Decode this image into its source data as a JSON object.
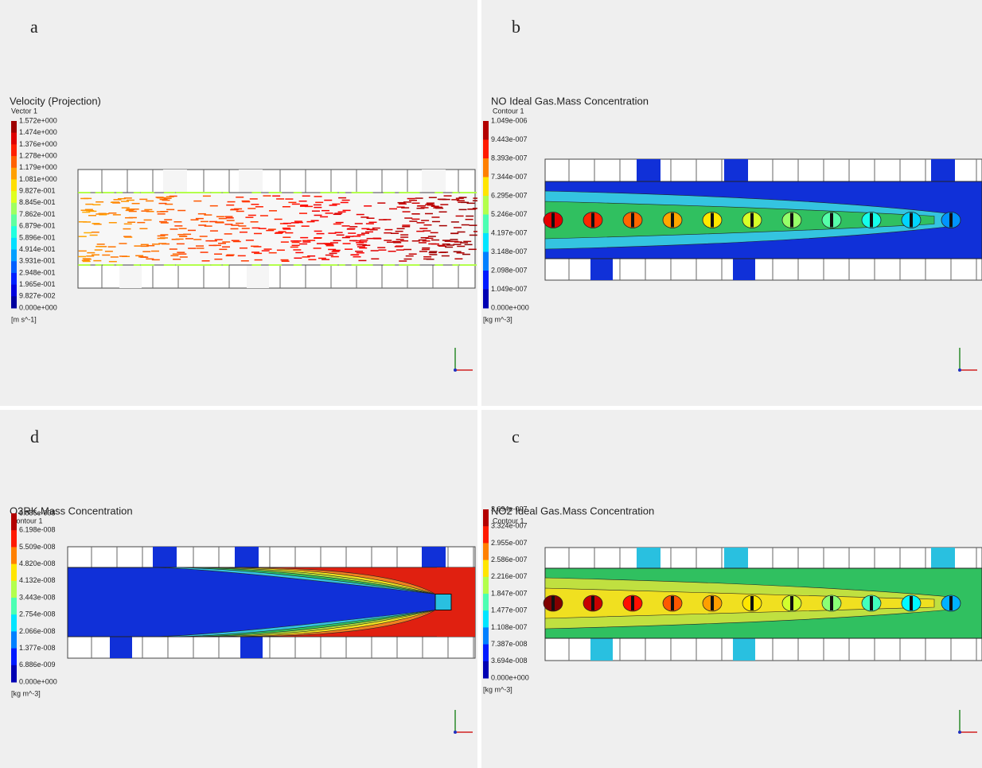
{
  "panels": [
    {
      "label": "a",
      "title": "Velocity (Projection)",
      "subtitle": "Vector 1",
      "legend": [
        "1.572e+000",
        "1.474e+000",
        "1.376e+000",
        "1.278e+000",
        "1.179e+000",
        "1.081e+000",
        "9.827e-001",
        "8.845e-001",
        "7.862e-001",
        "6.879e-001",
        "5.896e-001",
        "4.914e-001",
        "3.931e-001",
        "2.948e-001",
        "1.965e-001",
        "9.827e-002",
        "0.000e+000"
      ],
      "unit": "[m s^-1]"
    },
    {
      "label": "b",
      "title": "NO Ideal Gas.Mass Concentration",
      "subtitle": "Contour 1",
      "legend": [
        "1.049e-006",
        "9.443e-007",
        "8.393e-007",
        "7.344e-007",
        "6.295e-007",
        "5.246e-007",
        "4.197e-007",
        "3.148e-007",
        "2.098e-007",
        "1.049e-007",
        "0.000e+000"
      ],
      "unit": "[kg m^-3]"
    },
    {
      "label": "d",
      "title": "O3RK.Mass Concentration",
      "subtitle": "Contour 1",
      "legend": [
        "6.886e-008",
        "6.198e-008",
        "5.509e-008",
        "4.820e-008",
        "4.132e-008",
        "3.443e-008",
        "2.754e-008",
        "2.066e-008",
        "1.377e-008",
        "6.886e-009",
        "0.000e+000"
      ],
      "unit": "[kg m^-3]"
    },
    {
      "label": "c",
      "title": "NO2 Ideal Gas.Mass Concentration",
      "subtitle": "Contour 1",
      "legend": [
        "3.694e-007",
        "3.324e-007",
        "2.955e-007",
        "2.586e-007",
        "2.216e-007",
        "1.847e-007",
        "1.477e-007",
        "1.108e-007",
        "7.387e-008",
        "3.694e-008",
        "0.000e+000"
      ],
      "unit": "[kg m^-3]"
    }
  ]
}
